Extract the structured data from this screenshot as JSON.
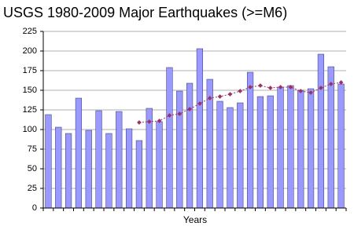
{
  "chart_data": {
    "type": "bar",
    "title": "USGS 1980-2009 Major Earthquakes (>=M6)",
    "x_label": "Years",
    "series": [
      {
        "type": "bar",
        "color": "#9999ff",
        "values": [
          119,
          103,
          95,
          140,
          99,
          124,
          95,
          123,
          101,
          86,
          127,
          110,
          179,
          149,
          159,
          203,
          164,
          136,
          128,
          134,
          173,
          142,
          143,
          154,
          156,
          150,
          152,
          196,
          180,
          158
        ]
      },
      {
        "type": "line",
        "color": "#993366",
        "values": [
          null,
          null,
          null,
          null,
          null,
          null,
          null,
          null,
          null,
          109,
          110,
          111,
          118,
          120,
          126,
          133,
          140,
          142,
          145,
          149,
          154,
          156,
          153,
          154,
          154,
          149,
          147,
          153,
          158,
          160
        ]
      }
    ],
    "ylim": [
      0,
      225
    ],
    "yticks": [
      0,
      25,
      50,
      75,
      100,
      125,
      150,
      175,
      200,
      225
    ],
    "grid": true
  }
}
